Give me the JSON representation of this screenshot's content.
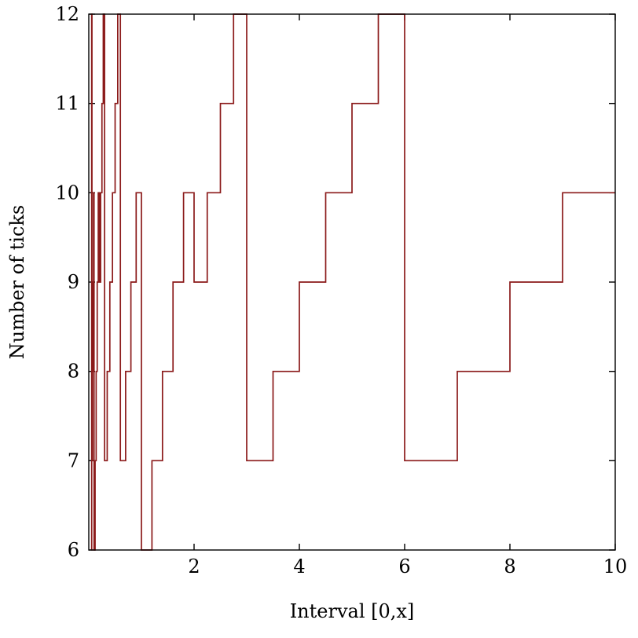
{
  "page": {
    "background": "#ffffff"
  },
  "chart_data": {
    "type": "line",
    "subtype": "step",
    "title": "",
    "xlabel": "Interval [0,x]",
    "ylabel": "Number of ticks",
    "xlim": [
      0,
      10
    ],
    "ylim": [
      6,
      12
    ],
    "x_ticks": [
      2,
      4,
      6,
      8,
      10
    ],
    "y_ticks": [
      6,
      7,
      8,
      9,
      10,
      11,
      12
    ],
    "grid": false,
    "legend": "none",
    "line_color": "#8b1a1a",
    "frame_color": "#000000",
    "steps": [
      [
        0.05,
        6
      ],
      [
        0.055,
        12
      ],
      [
        0.06,
        7
      ],
      [
        0.07,
        8
      ],
      [
        0.08,
        9
      ],
      [
        0.09,
        10
      ],
      [
        0.1,
        6
      ],
      [
        0.12,
        7
      ],
      [
        0.14,
        8
      ],
      [
        0.16,
        9
      ],
      [
        0.18,
        10
      ],
      [
        0.2,
        9
      ],
      [
        0.225,
        10
      ],
      [
        0.25,
        11
      ],
      [
        0.275,
        12
      ],
      [
        0.3,
        7
      ],
      [
        0.35,
        8
      ],
      [
        0.4,
        9
      ],
      [
        0.45,
        10
      ],
      [
        0.5,
        11
      ],
      [
        0.55,
        12
      ],
      [
        0.6,
        7
      ],
      [
        0.7,
        8
      ],
      [
        0.8,
        9
      ],
      [
        0.9,
        10
      ],
      [
        1.0,
        6
      ],
      [
        1.2,
        7
      ],
      [
        1.4,
        8
      ],
      [
        1.6,
        9
      ],
      [
        1.8,
        10
      ],
      [
        2.0,
        9
      ],
      [
        2.25,
        10
      ],
      [
        2.5,
        11
      ],
      [
        2.75,
        12
      ],
      [
        3.0,
        7
      ],
      [
        3.5,
        8
      ],
      [
        4.0,
        9
      ],
      [
        4.5,
        10
      ],
      [
        5.0,
        11
      ],
      [
        5.5,
        12
      ],
      [
        6.0,
        7
      ],
      [
        7.0,
        8
      ],
      [
        8.0,
        9
      ],
      [
        9.0,
        10
      ]
    ],
    "x_end": 10
  }
}
